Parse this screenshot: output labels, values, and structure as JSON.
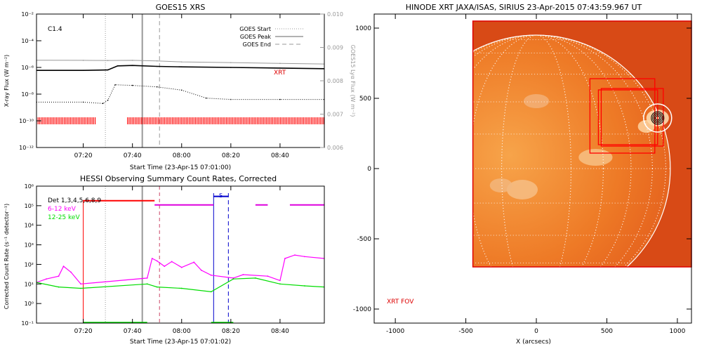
{
  "chart_data": [
    {
      "type": "line",
      "title": "GOES15 XRS",
      "xlabel": "Start Time (23-Apr-15 07:01:00)",
      "ylabel": "X-ray Flux (W m⁻²)",
      "y2label": "GOES15 Lyα Flux (W m⁻²)",
      "xlim": [
        "07:01",
        "08:58"
      ],
      "x_ticks": [
        "07:20",
        "07:40",
        "08:00",
        "08:20",
        "08:40"
      ],
      "y_scale": "log",
      "ylim": [
        1e-12,
        0.01
      ],
      "y_ticks": [
        "10⁻¹²",
        "10⁻¹⁰",
        "10⁻⁸",
        "10⁻⁶",
        "10⁻⁴",
        "10⁻²"
      ],
      "y2lim": [
        0.006,
        0.01
      ],
      "y2_ticks": [
        "0.006",
        "0.007",
        "0.008",
        "0.009",
        "0.010"
      ],
      "annotation": "C1.4",
      "series_label": "XRT",
      "legend_position": "top-right",
      "legend": [
        "GOES Start",
        "GOES Peak",
        "GOES End"
      ],
      "event_times": {
        "goes_start": "07:29",
        "goes_peak": "07:44",
        "goes_end": "07:51"
      },
      "series": [
        {
          "color": "#999999",
          "x": [
            "07:01",
            "07:20",
            "07:30",
            "07:40",
            "07:50",
            "08:00",
            "08:20",
            "08:40",
            "08:58"
          ],
          "values": [
            3.5e-06,
            3.4e-06,
            3.3e-06,
            3.4e-06,
            3.1e-06,
            2.6e-06,
            2.3e-06,
            2e-06,
            1.8e-06
          ]
        },
        {
          "color": "#000000",
          "x": [
            "07:01",
            "07:20",
            "07:30",
            "07:34",
            "07:40",
            "07:50",
            "08:00",
            "08:20",
            "08:40",
            "08:58"
          ],
          "values": [
            6e-07,
            6e-07,
            6.5e-07,
            1.3e-06,
            1.4e-06,
            1.2e-06,
            1.1e-06,
            1e-06,
            9e-07,
            8e-07
          ]
        },
        {
          "color": "#000000",
          "style": "dotted",
          "x": [
            "07:01",
            "07:20",
            "07:28",
            "07:30",
            "07:33",
            "07:40",
            "07:50",
            "08:00",
            "08:10",
            "08:20",
            "08:40",
            "08:58"
          ],
          "values": [
            2.5e-09,
            2.5e-09,
            2e-09,
            3.5e-09,
            5e-08,
            4.5e-08,
            3.5e-08,
            2e-08,
            5e-09,
            4e-09,
            4e-09,
            4e-09
          ]
        }
      ],
      "xrt_exposure_ranges": [
        [
          "07:01",
          "07:25"
        ],
        [
          "07:38",
          "08:58"
        ]
      ]
    },
    {
      "type": "line",
      "title": "HESSI Observing Summary Count Rates, Corrected",
      "xlabel": "Start Time (23-Apr-15 07:01:02)",
      "ylabel": "Corrected Count Rate (s⁻¹ detector⁻¹)",
      "xlim": [
        "07:01",
        "08:58"
      ],
      "x_ticks": [
        "07:20",
        "07:40",
        "08:00",
        "08:20",
        "08:40"
      ],
      "y_scale": "log",
      "ylim": [
        0.1,
        1000000.0
      ],
      "y_ticks": [
        "10⁻¹",
        "10⁰",
        "10¹",
        "10²",
        "10³",
        "10⁴",
        "10⁵",
        "10⁶"
      ],
      "legend_position": "top-left",
      "legend_color": "#000000",
      "flag_label": "S",
      "event_times": {
        "goes_start": "07:29",
        "goes_peak": "07:44",
        "goes_end": "07:51",
        "rhessi_night_start": "07:20",
        "saa_start": "08:13",
        "saa_end": "08:19"
      },
      "series": [
        {
          "name": "Det 1,3,4,5,6,8,9",
          "color": "#000000",
          "x": [],
          "values": []
        },
        {
          "name": "6-12 keV",
          "color": "#ff00ff",
          "x": [
            "07:01",
            "07:05",
            "07:10",
            "07:12",
            "07:15",
            "07:19",
            "07:46",
            "07:48",
            "07:50",
            "07:53",
            "07:56",
            "08:00",
            "08:05",
            "08:08",
            "08:12",
            "08:21",
            "08:25",
            "08:35",
            "08:40",
            "08:42",
            "08:46",
            "08:50",
            "08:58"
          ],
          "values": [
            12,
            18,
            25,
            80,
            40,
            10,
            20,
            200,
            150,
            80,
            140,
            70,
            130,
            50,
            28,
            20,
            30,
            25,
            15,
            200,
            300,
            250,
            200
          ]
        },
        {
          "name": "12-25 keV",
          "color": "#00dd00",
          "x": [
            "07:01",
            "07:10",
            "07:19",
            "07:46",
            "07:50",
            "08:00",
            "08:12",
            "08:21",
            "08:30",
            "08:40",
            "08:50",
            "08:58"
          ],
          "values": [
            12,
            7,
            6,
            10,
            7,
            6,
            4,
            18,
            20,
            10,
            8,
            7
          ]
        }
      ],
      "attenuator_bars": [
        {
          "color": "#ff0000",
          "y": 180000.0,
          "ranges": [
            [
              "07:20",
              "07:49"
            ]
          ]
        },
        {
          "color": "#dd00dd",
          "y": 110000.0,
          "ranges": [
            [
              "07:49",
              "08:13"
            ],
            [
              "08:30",
              "08:35"
            ],
            [
              "08:44",
              "08:58"
            ]
          ]
        },
        {
          "color": "#0000cc",
          "y": 300000.0,
          "ranges": [
            [
              "08:13",
              "08:19"
            ]
          ]
        }
      ]
    },
    {
      "type": "image",
      "title": "HINODE XRT JAXA/ISAS, SIRIUS 23-Apr-2015 07:43:59.967 UT",
      "xlabel": "X (arcsecs)",
      "xlim": [
        -1150,
        1100
      ],
      "ylim": [
        -1100,
        1100
      ],
      "x_ticks": [
        -1000,
        -500,
        0,
        500,
        1000
      ],
      "y_ticks": [
        -1000,
        -500,
        0,
        500,
        1000
      ],
      "annotation": "XRT FOV",
      "solar_radius_arcsec": 950,
      "grid": true,
      "fov_box": {
        "x": [
          -450,
          1100
        ],
        "y": [
          -700,
          1050
        ]
      },
      "boxes": [
        [
          380,
          840,
          110,
          640
        ],
        [
          460,
          900,
          160,
          570
        ],
        [
          440,
          860,
          170,
          560
        ]
      ],
      "contour_center": [
        860,
        360
      ]
    }
  ]
}
